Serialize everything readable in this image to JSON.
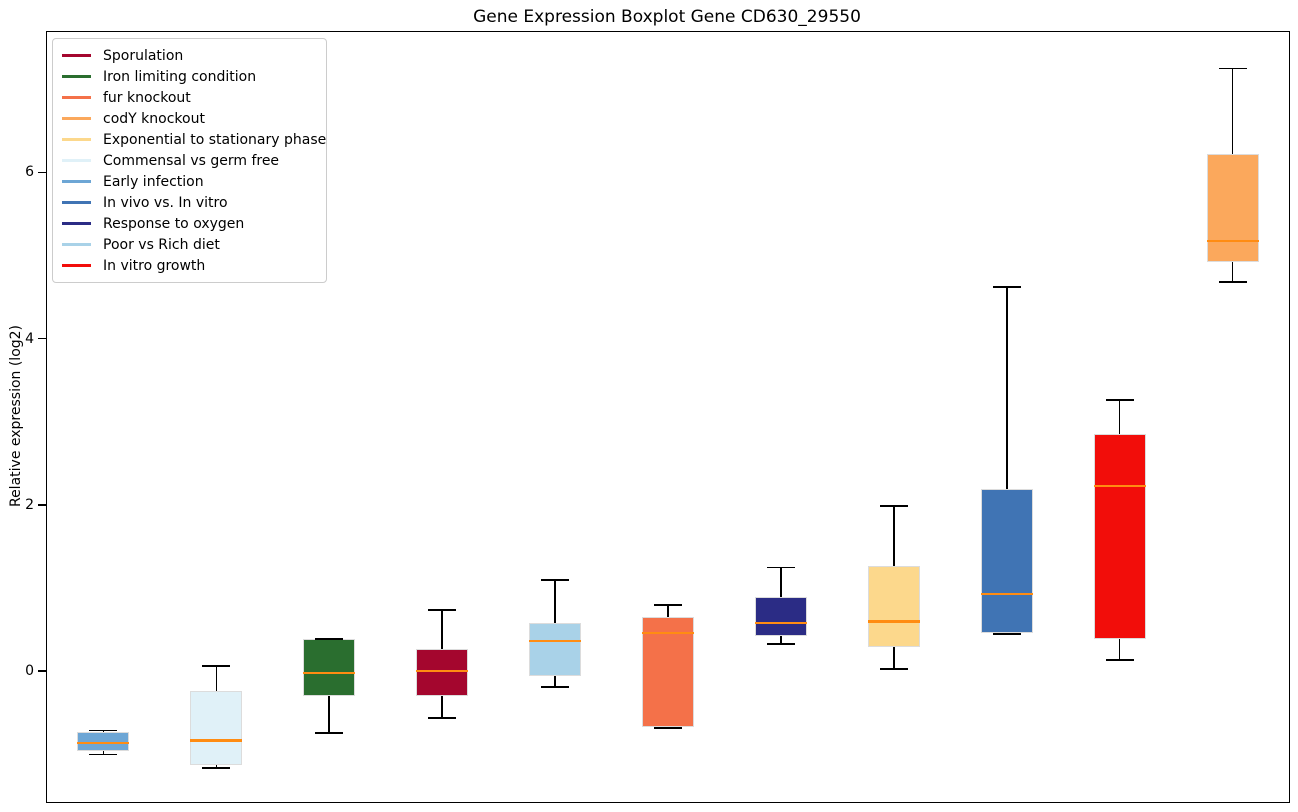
{
  "title": "Gene Expression Boxplot Gene CD630_29550",
  "ylabel": "Relative expression (log2)",
  "chart_data": {
    "type": "boxplot",
    "title": "Gene Expression Boxplot Gene CD630_29550",
    "xlabel": "",
    "ylabel": "Relative expression (log2)",
    "ylim": [
      -1.56,
      7.7
    ],
    "yticks": [
      0,
      2,
      4,
      6
    ],
    "grid": false,
    "x_tick_labels_visible": false,
    "legend_position": "upper left",
    "median_color": "#ff8c12",
    "whisker_color": "#000000",
    "legend_order": [
      "Sporulation",
      "Iron limiting condition",
      "fur knockout",
      "codY knockout",
      "Exponential to stationary phase",
      "Commensal vs germ free",
      "Early infection",
      "In vivo vs. In vitro",
      "Response to oxygen",
      "Poor vs Rich diet",
      "In vitro growth"
    ],
    "series": [
      {
        "label": "Early infection",
        "color": "#6da6d5",
        "whislo": -0.99,
        "q1": -0.95,
        "med": -0.85,
        "q3": -0.72,
        "whishi": -0.7
      },
      {
        "label": "Commensal vs germ free",
        "color": "#e0f1f8",
        "whislo": -1.15,
        "q1": -1.11,
        "med": -0.82,
        "q3": -0.23,
        "whishi": 0.08
      },
      {
        "label": "Iron limiting condition",
        "color": "#2a6e2f",
        "whislo": -0.73,
        "q1": -0.28,
        "med": -0.01,
        "q3": 0.4,
        "whishi": 0.4
      },
      {
        "label": "Sporulation",
        "color": "#a4062e",
        "whislo": -0.55,
        "q1": -0.28,
        "med": 0.02,
        "q3": 0.28,
        "whishi": 0.75
      },
      {
        "label": "Poor vs Rich diet",
        "color": "#a9d2e8",
        "whislo": -0.18,
        "q1": -0.05,
        "med": 0.38,
        "q3": 0.59,
        "whishi": 1.11
      },
      {
        "label": "fur knockout",
        "color": "#f47149",
        "whislo": -0.67,
        "q1": -0.66,
        "med": 0.47,
        "q3": 0.66,
        "whishi": 0.81
      },
      {
        "label": "Response to oxygen",
        "color": "#2b2c85",
        "whislo": 0.34,
        "q1": 0.44,
        "med": 0.59,
        "q3": 0.91,
        "whishi": 1.26
      },
      {
        "label": "Exponential to stationary phase",
        "color": "#fcd88c",
        "whislo": 0.04,
        "q1": 0.31,
        "med": 0.61,
        "q3": 1.28,
        "whishi": 2.0
      },
      {
        "label": "In vivo vs. In vitro",
        "color": "#4074b4",
        "whislo": 0.46,
        "q1": 0.47,
        "med": 0.94,
        "q3": 2.2,
        "whishi": 4.63
      },
      {
        "label": "In vitro growth",
        "color": "#f20d0a",
        "whislo": 0.15,
        "q1": 0.4,
        "med": 2.24,
        "q3": 2.86,
        "whishi": 3.27
      },
      {
        "label": "codY knockout",
        "color": "#fba85c",
        "whislo": 4.69,
        "q1": 4.94,
        "med": 5.19,
        "q3": 6.23,
        "whishi": 7.26
      }
    ]
  }
}
